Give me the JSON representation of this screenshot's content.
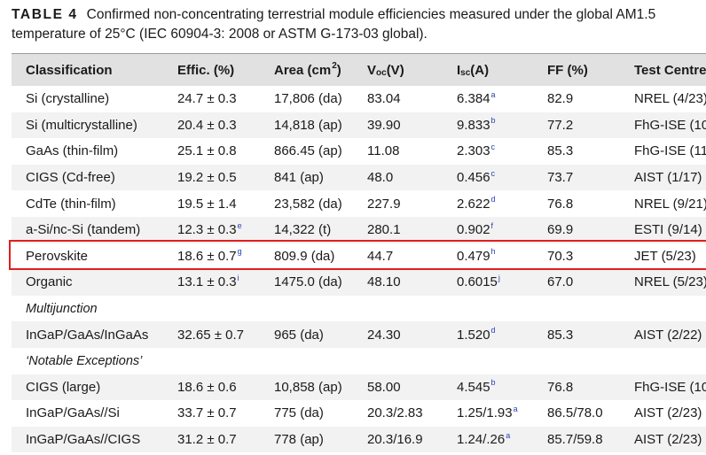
{
  "caption": {
    "label": "TABLE 4",
    "line1": "Confirmed non-concentrating terrestrial module efficiencies measured under the global AM1.5",
    "line2": "temperature of 25°C (IEC 60904-3: 2008 or ASTM G-173-03 global)."
  },
  "header": {
    "classification": "Classification",
    "effic": "Effic. (%)",
    "area": "Area (cm",
    "area_sup": "2",
    "area_close": ")",
    "voc": "V",
    "voc_sub": "oc",
    "voc_unit": " (V)",
    "isc": "I",
    "isc_sub": "sc",
    "isc_unit": " (A)",
    "ff": "FF (%)",
    "centre": "Test Centre"
  },
  "rows": [
    {
      "classification": "Si (crystalline)",
      "effic": "24.7 ± 0.3",
      "effic_note": "",
      "area": "17,806 (da)",
      "voc": "83.04",
      "isc": "6.384",
      "isc_note": "a",
      "ff": "82.9",
      "centre": "NREL (4/23)"
    },
    {
      "classification": "Si (multicrystalline)",
      "effic": "20.4 ± 0.3",
      "effic_note": "",
      "area": "14,818 (ap)",
      "voc": "39.90",
      "isc": "9.833",
      "isc_note": "b",
      "ff": "77.2",
      "centre": "FhG-ISE (10"
    },
    {
      "classification": "GaAs (thin-film)",
      "effic": "25.1 ± 0.8",
      "effic_note": "",
      "area": "866.45 (ap)",
      "voc": "11.08",
      "isc": "2.303",
      "isc_note": "c",
      "ff": "85.3",
      "centre": "FhG-ISE (11"
    },
    {
      "classification": "CIGS (Cd-free)",
      "effic": "19.2 ± 0.5",
      "effic_note": "",
      "area": "841 (ap)",
      "voc": "48.0",
      "isc": "0.456",
      "isc_note": "c",
      "ff": "73.7",
      "centre": "AIST (1/17)"
    },
    {
      "classification": "CdTe (thin-film)",
      "effic": "19.5 ± 1.4",
      "effic_note": "",
      "area": "23,582 (da)",
      "voc": "227.9",
      "isc": "2.622",
      "isc_note": "d",
      "ff": "76.8",
      "centre": "NREL (9/21)"
    },
    {
      "classification": "a-Si/nc-Si (tandem)",
      "effic": "12.3 ± 0.3",
      "effic_note": "e",
      "area": "14,322 (t)",
      "voc": "280.1",
      "isc": "0.902",
      "isc_note": "f",
      "ff": "69.9",
      "centre": "ESTI (9/14)"
    },
    {
      "classification": "Perovskite",
      "effic": "18.6 ± 0.7",
      "effic_note": "g",
      "area": "809.9 (da)",
      "voc": "44.7",
      "isc": "0.479",
      "isc_note": "h",
      "ff": "70.3",
      "centre": "JET (5/23)"
    },
    {
      "classification": "Organic",
      "effic": "13.1 ± 0.3",
      "effic_note": "i",
      "area": "1475.0 (da)",
      "voc": "48.10",
      "isc": "0.6015",
      "isc_note": "j",
      "ff": "67.0",
      "centre": "NREL (5/23)"
    },
    {
      "section": "Multijunction"
    },
    {
      "classification": "InGaP/GaAs/InGaAs",
      "effic": "32.65 ± 0.7",
      "effic_note": "",
      "area": "965 (da)",
      "voc": "24.30",
      "isc": "1.520",
      "isc_note": "d",
      "ff": "85.3",
      "centre": "AIST (2/22)"
    },
    {
      "section": "‘Notable Exceptions’"
    },
    {
      "classification": "CIGS (large)",
      "effic": "18.6 ± 0.6",
      "effic_note": "",
      "area": "10,858 (ap)",
      "voc": "58.00",
      "isc": "4.545",
      "isc_note": "b",
      "ff": "76.8",
      "centre": "FhG-ISE (10"
    },
    {
      "classification": "InGaP/GaAs//Si",
      "effic": "33.7 ± 0.7",
      "effic_note": "",
      "area": "775 (da)",
      "voc": "20.3/2.83",
      "isc": "1.25/1.93",
      "isc_note": "a",
      "ff": "86.5/78.0",
      "centre": "AIST (2/23)"
    },
    {
      "classification": "InGaP/GaAs//CIGS",
      "effic": "31.2 ± 0.7",
      "effic_note": "",
      "area": "778 (ap)",
      "voc": "20.3/16.9",
      "isc": "1.24/.26",
      "isc_note": "a",
      "ff": "85.7/59.8",
      "centre": "AIST (2/23)"
    }
  ],
  "highlight": {
    "row": "Perovskite",
    "color": "#e01e1e"
  },
  "colors": {
    "header_bg": "#e1e1e1",
    "stripe_bg": "#f2f2f2",
    "note_color": "#2a3fb8"
  }
}
